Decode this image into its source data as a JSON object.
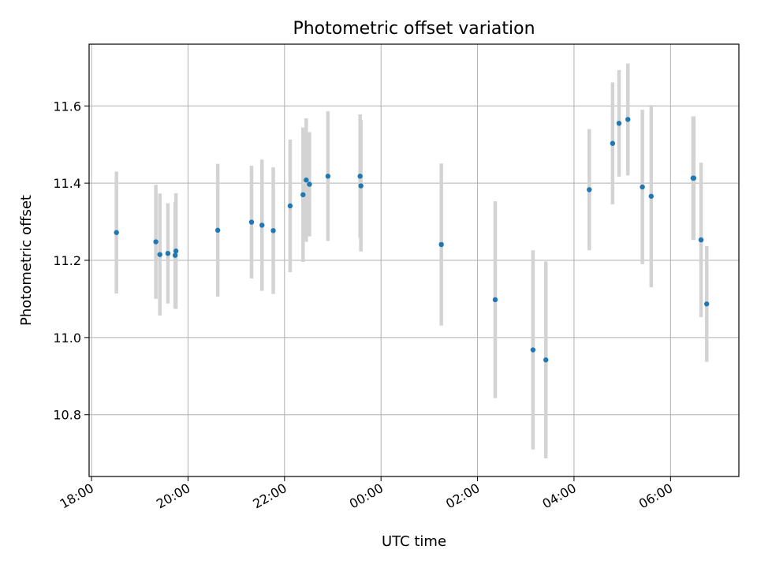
{
  "chart_data": {
    "type": "scatter",
    "title": "Photometric offset variation",
    "xlabel": "UTC time",
    "ylabel": "Photometric offset",
    "x_axis_type": "time",
    "xlim": [
      "17:57",
      "07:25"
    ],
    "ylim": [
      10.64,
      11.76
    ],
    "x_ticks": [
      "18:00",
      "20:00",
      "22:00",
      "00:00",
      "02:00",
      "04:00",
      "06:00"
    ],
    "y_ticks": [
      10.8,
      11.0,
      11.2,
      11.4,
      11.6
    ],
    "grid": true,
    "marker_color": "#1f77b4",
    "errorbar_color": "#d3d3d3",
    "points": [
      {
        "x": "18:31",
        "y": 11.272,
        "yerr": 0.158
      },
      {
        "x": "19:20",
        "y": 11.248,
        "yerr": 0.148
      },
      {
        "x": "19:25",
        "y": 11.215,
        "yerr": 0.158
      },
      {
        "x": "19:35",
        "y": 11.218,
        "yerr": 0.13
      },
      {
        "x": "19:44",
        "y": 11.213,
        "yerr": 0.138
      },
      {
        "x": "19:45",
        "y": 11.224,
        "yerr": 0.15
      },
      {
        "x": "20:37",
        "y": 11.278,
        "yerr": 0.172
      },
      {
        "x": "21:19",
        "y": 11.299,
        "yerr": 0.146
      },
      {
        "x": "21:32",
        "y": 11.291,
        "yerr": 0.17
      },
      {
        "x": "21:46",
        "y": 11.277,
        "yerr": 0.164
      },
      {
        "x": "22:07",
        "y": 11.341,
        "yerr": 0.172
      },
      {
        "x": "22:23",
        "y": 11.37,
        "yerr": 0.174
      },
      {
        "x": "22:27",
        "y": 11.408,
        "yerr": 0.16
      },
      {
        "x": "22:31",
        "y": 11.397,
        "yerr": 0.135
      },
      {
        "x": "22:54",
        "y": 11.418,
        "yerr": 0.168
      },
      {
        "x": "23:34",
        "y": 11.418,
        "yerr": 0.16
      },
      {
        "x": "23:35",
        "y": 11.393,
        "yerr": 0.17
      },
      {
        "x": "01:15",
        "y": 11.241,
        "yerr": 0.21
      },
      {
        "x": "02:22",
        "y": 11.098,
        "yerr": 0.255
      },
      {
        "x": "03:09",
        "y": 10.968,
        "yerr": 0.258
      },
      {
        "x": "03:25",
        "y": 10.942,
        "yerr": 0.255
      },
      {
        "x": "04:19",
        "y": 11.383,
        "yerr": 0.157
      },
      {
        "x": "04:48",
        "y": 11.503,
        "yerr": 0.158
      },
      {
        "x": "04:56",
        "y": 11.555,
        "yerr": 0.138
      },
      {
        "x": "05:07",
        "y": 11.565,
        "yerr": 0.145
      },
      {
        "x": "05:25",
        "y": 11.39,
        "yerr": 0.2
      },
      {
        "x": "05:36",
        "y": 11.366,
        "yerr": 0.236
      },
      {
        "x": "06:28",
        "y": 11.413,
        "yerr": 0.16
      },
      {
        "x": "06:29",
        "y": 11.413,
        "yerr": 0.16
      },
      {
        "x": "06:38",
        "y": 11.253,
        "yerr": 0.2
      },
      {
        "x": "06:45",
        "y": 11.087,
        "yerr": 0.15
      }
    ]
  }
}
